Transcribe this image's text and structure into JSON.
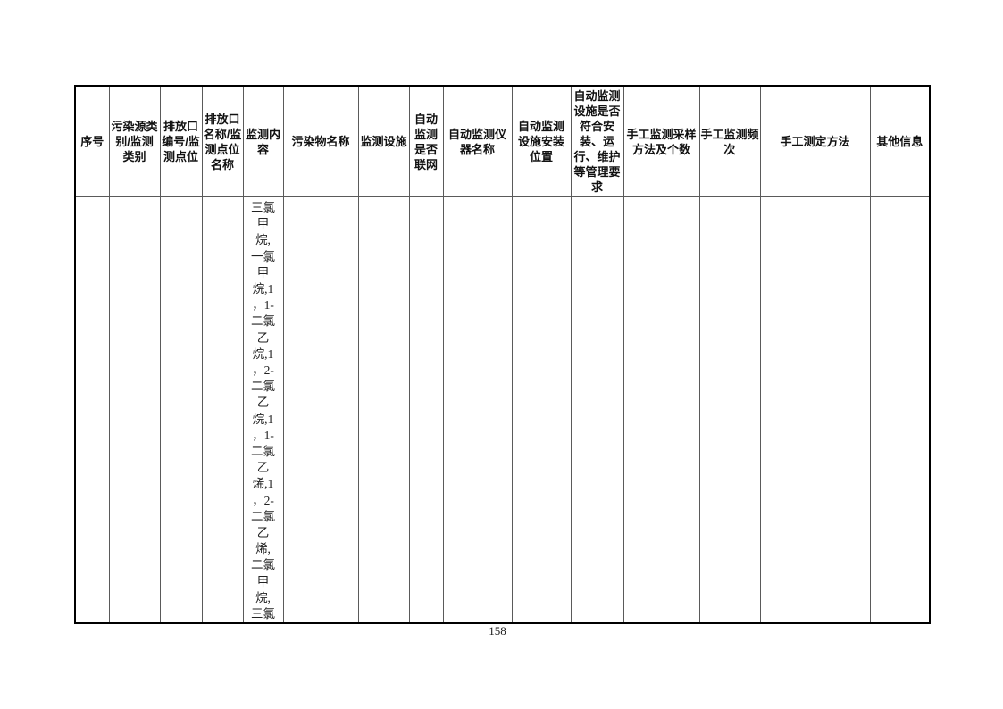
{
  "page_number": "158",
  "table": {
    "headers": [
      "序号",
      "污染源类别/监测类别",
      "排放口编号/监测点位",
      "排放口名称/监测点位名称",
      "监测内容",
      "污染物名称",
      "监测设施",
      "自动监测是否联网",
      "自动监测仪器名称",
      "自动监测设施安装位置",
      "自动监测设施是否符合安装、运行、维护等管理要求",
      "手工监测采样方法及个数",
      "手工监测频次",
      "手工测定方法",
      "其他信息"
    ],
    "row": {
      "index": "",
      "pollution_source_category": "",
      "outlet_number": "",
      "outlet_name": "",
      "monitoring_content_text": "三氯甲烷,一氯甲烷,1，1-二氯乙烷,1，2-二氯乙烷,1，1-二氯乙烯,1，2-二氯乙烯,二氯甲烷,三氯",
      "monitoring_content_lines": [
        "三氯",
        "甲",
        "烷,",
        "一氯",
        "甲",
        "烷,1",
        "，1-",
        "二氯",
        "乙",
        "烷,1",
        "，2-",
        "二氯",
        "乙",
        "烷,1",
        "，1-",
        "二氯",
        "乙",
        "烯,1",
        "，2-",
        "二氯",
        "乙",
        "烯,",
        "二氯",
        "甲",
        "烷,",
        "三氯"
      ],
      "pollutant_name": "",
      "monitoring_facility": "",
      "auto_networked": "",
      "auto_instrument_name": "",
      "auto_install_location": "",
      "auto_compliance": "",
      "manual_sampling_method": "",
      "manual_frequency": "",
      "manual_determination_method": "",
      "other_info": ""
    }
  }
}
